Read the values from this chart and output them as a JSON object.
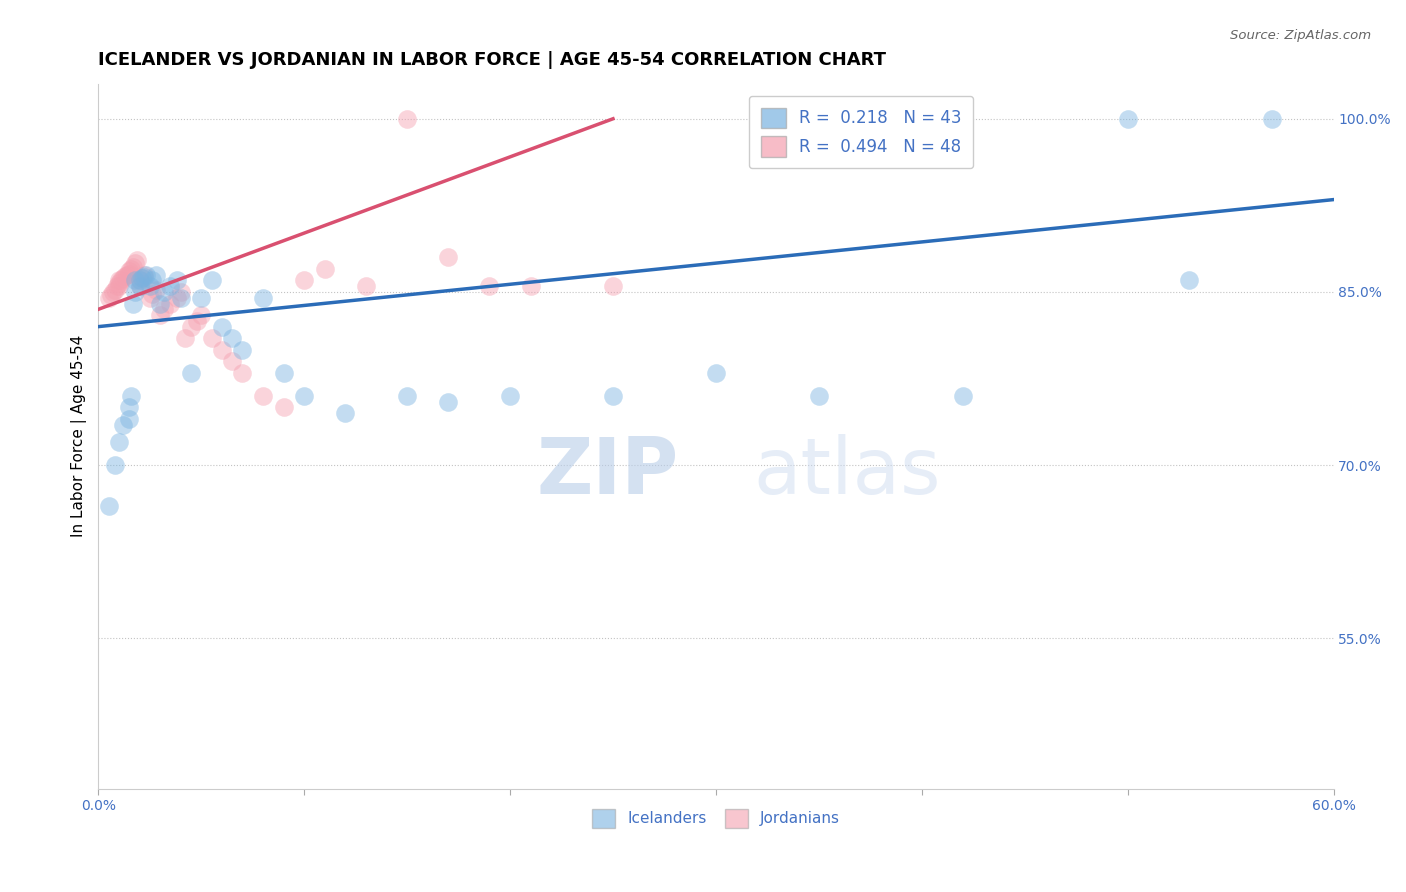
{
  "title": "ICELANDER VS JORDANIAN IN LABOR FORCE | AGE 45-54 CORRELATION CHART",
  "source_text": "Source: ZipAtlas.com",
  "ylabel": "In Labor Force | Age 45-54",
  "xlim": [
    0.0,
    0.6
  ],
  "ylim": [
    0.42,
    1.03
  ],
  "xticks": [
    0.0,
    0.1,
    0.2,
    0.3,
    0.4,
    0.5,
    0.6
  ],
  "xticklabels": [
    "0.0%",
    "",
    "",
    "",
    "",
    "",
    "60.0%"
  ],
  "yticks": [
    0.55,
    0.7,
    0.85,
    1.0
  ],
  "yticklabels": [
    "55.0%",
    "70.0%",
    "85.0%",
    "100.0%"
  ],
  "watermark_zip": "ZIP",
  "watermark_atlas": "atlas",
  "blue_R": 0.218,
  "blue_N": 43,
  "pink_R": 0.494,
  "pink_N": 48,
  "blue_scatter_x": [
    0.005,
    0.008,
    0.01,
    0.012,
    0.015,
    0.015,
    0.016,
    0.017,
    0.018,
    0.018,
    0.02,
    0.02,
    0.021,
    0.022,
    0.023,
    0.025,
    0.026,
    0.028,
    0.03,
    0.032,
    0.035,
    0.038,
    0.04,
    0.045,
    0.05,
    0.055,
    0.06,
    0.065,
    0.07,
    0.08,
    0.09,
    0.1,
    0.12,
    0.15,
    0.17,
    0.2,
    0.25,
    0.3,
    0.35,
    0.42,
    0.5,
    0.53,
    0.57
  ],
  "blue_scatter_y": [
    0.665,
    0.7,
    0.72,
    0.735,
    0.74,
    0.75,
    0.76,
    0.84,
    0.85,
    0.86,
    0.855,
    0.86,
    0.862,
    0.863,
    0.865,
    0.855,
    0.86,
    0.865,
    0.84,
    0.85,
    0.855,
    0.86,
    0.845,
    0.78,
    0.845,
    0.86,
    0.82,
    0.81,
    0.8,
    0.845,
    0.78,
    0.76,
    0.745,
    0.76,
    0.755,
    0.76,
    0.76,
    0.78,
    0.76,
    0.76,
    1.0,
    0.86,
    1.0
  ],
  "pink_scatter_x": [
    0.005,
    0.006,
    0.007,
    0.008,
    0.009,
    0.01,
    0.01,
    0.01,
    0.011,
    0.012,
    0.013,
    0.014,
    0.015,
    0.015,
    0.016,
    0.017,
    0.018,
    0.019,
    0.02,
    0.02,
    0.021,
    0.022,
    0.025,
    0.026,
    0.028,
    0.03,
    0.032,
    0.035,
    0.038,
    0.04,
    0.042,
    0.045,
    0.048,
    0.05,
    0.055,
    0.06,
    0.065,
    0.07,
    0.08,
    0.09,
    0.1,
    0.11,
    0.13,
    0.15,
    0.17,
    0.19,
    0.21,
    0.25
  ],
  "pink_scatter_y": [
    0.845,
    0.847,
    0.85,
    0.852,
    0.855,
    0.855,
    0.858,
    0.86,
    0.86,
    0.862,
    0.864,
    0.865,
    0.866,
    0.868,
    0.87,
    0.872,
    0.875,
    0.878,
    0.855,
    0.86,
    0.862,
    0.865,
    0.845,
    0.848,
    0.852,
    0.83,
    0.835,
    0.84,
    0.845,
    0.85,
    0.81,
    0.82,
    0.825,
    0.83,
    0.81,
    0.8,
    0.79,
    0.78,
    0.76,
    0.75,
    0.86,
    0.87,
    0.855,
    1.0,
    0.88,
    0.855,
    0.855,
    0.855
  ],
  "blue_line_x0": 0.0,
  "blue_line_x1": 0.6,
  "blue_line_y0": 0.82,
  "blue_line_y1": 0.93,
  "pink_line_x0": 0.0,
  "pink_line_x1": 0.25,
  "pink_line_y0": 0.835,
  "pink_line_y1": 1.0,
  "dot_size": 180,
  "dot_alpha": 0.45,
  "blue_color": "#7ab3e0",
  "pink_color": "#f4a0b0",
  "blue_line_color": "#2b6cb8",
  "pink_line_color": "#d95070",
  "background_color": "#ffffff",
  "grid_color": "#aaaaaa",
  "title_fontsize": 13,
  "axis_label_fontsize": 11,
  "tick_fontsize": 10,
  "tick_color": "#4472c4",
  "source_color": "#666666"
}
